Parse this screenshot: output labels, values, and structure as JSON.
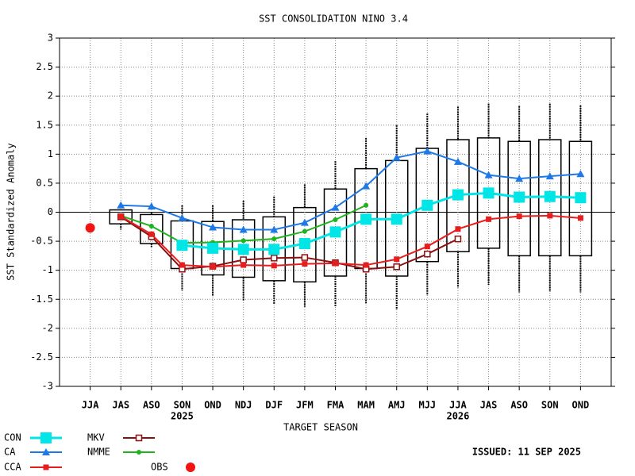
{
  "chart_data": {
    "type": "line",
    "title": "SST CONSOLIDATION NINO 3.4",
    "x_label": "TARGET SEASON",
    "y_label": "SST Standardized Anomaly",
    "issued": "ISSUED: 11 SEP 2025",
    "categories": [
      "JJA",
      "JAS",
      "ASO",
      "SON",
      "OND",
      "NDJ",
      "DJF",
      "JFM",
      "FMA",
      "MAM",
      "AMJ",
      "MJJ",
      "JJA",
      "JAS",
      "ASO",
      "SON",
      "OND"
    ],
    "year_labels": [
      null,
      null,
      null,
      "2025",
      null,
      null,
      null,
      null,
      null,
      null,
      null,
      null,
      "2026",
      null,
      null,
      null,
      null
    ],
    "ylim": [
      -3,
      3
    ],
    "yticks": [
      -3,
      -2.5,
      -2,
      -1.5,
      -1,
      -0.5,
      0,
      0.5,
      1,
      1.5,
      2,
      2.5,
      3
    ],
    "grid": true,
    "boxes": {
      "low": [
        null,
        -0.3,
        -0.6,
        -1.35,
        -1.45,
        -1.52,
        -1.58,
        -1.63,
        -1.63,
        -1.57,
        -1.68,
        -1.43,
        -1.3,
        -1.25,
        -1.38,
        -1.37,
        -1.38
      ],
      "q1": [
        null,
        -0.2,
        -0.54,
        -0.97,
        -1.08,
        -1.12,
        -1.18,
        -1.2,
        -1.1,
        -0.97,
        -1.1,
        -0.85,
        -0.68,
        -0.62,
        -0.75,
        -0.75,
        -0.75
      ],
      "q3": [
        null,
        0.04,
        -0.04,
        -0.15,
        -0.16,
        -0.13,
        -0.08,
        0.08,
        0.4,
        0.75,
        0.89,
        1.1,
        1.25,
        1.28,
        1.22,
        1.25,
        1.22
      ],
      "high": [
        null,
        0.05,
        0.0,
        0.12,
        0.12,
        0.2,
        0.27,
        0.48,
        0.88,
        1.28,
        1.5,
        1.7,
        1.82,
        1.87,
        1.83,
        1.87,
        1.84
      ]
    },
    "series": [
      {
        "name": "CON",
        "color": "#00e5e5",
        "marker": "square",
        "values": [
          null,
          null,
          null,
          -0.57,
          -0.62,
          -0.64,
          -0.64,
          -0.54,
          -0.34,
          -0.12,
          -0.12,
          0.12,
          0.3,
          0.33,
          0.26,
          0.27,
          0.25
        ]
      },
      {
        "name": "CA",
        "color": "#1e78e6",
        "marker": "triangle",
        "values": [
          null,
          0.12,
          0.1,
          -0.1,
          -0.26,
          -0.3,
          -0.3,
          -0.18,
          0.08,
          0.45,
          0.94,
          1.05,
          0.87,
          0.64,
          0.58,
          0.62,
          0.66
        ]
      },
      {
        "name": "CCA",
        "color": "#e61e1e",
        "marker": "square-small",
        "values": [
          null,
          -0.07,
          -0.38,
          -0.91,
          -0.94,
          -0.91,
          -0.92,
          -0.89,
          -0.88,
          -0.91,
          -0.81,
          -0.59,
          -0.29,
          -0.12,
          -0.07,
          -0.06,
          -0.1
        ]
      },
      {
        "name": "MKV",
        "color": "#8b1010",
        "marker": "open-square",
        "values": [
          null,
          -0.08,
          -0.42,
          -0.98,
          -0.93,
          -0.82,
          -0.79,
          -0.78,
          -0.87,
          -0.98,
          -0.94,
          -0.72,
          -0.46,
          null,
          null,
          null,
          null
        ]
      },
      {
        "name": "NMME",
        "color": "#1eb41e",
        "marker": "dot",
        "values": [
          null,
          -0.06,
          -0.24,
          -0.53,
          -0.52,
          -0.49,
          -0.46,
          -0.33,
          -0.13,
          0.12,
          null,
          null,
          null,
          null,
          null,
          null,
          null
        ]
      },
      {
        "name": "OBS",
        "color": "#f01414",
        "marker": "circle",
        "values": [
          -0.27,
          null,
          null,
          null,
          null,
          null,
          null,
          null,
          null,
          null,
          null,
          null,
          null,
          null,
          null,
          null,
          null
        ]
      }
    ]
  }
}
